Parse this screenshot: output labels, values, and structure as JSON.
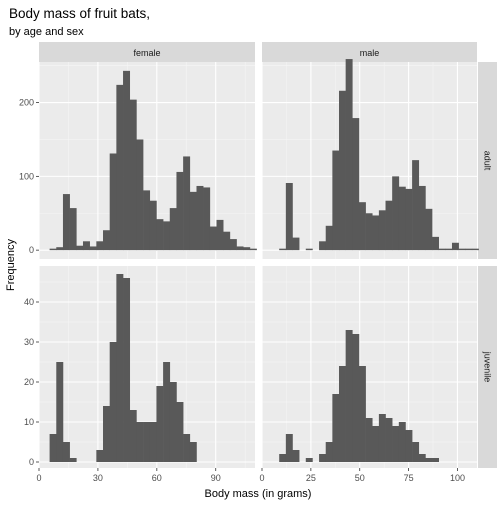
{
  "chart_data": {
    "type": "bar",
    "title": "Body mass of fruit bats,",
    "subtitle": "by age and sex",
    "xlabel": "Body mass (in grams)",
    "ylabel": "Frequency",
    "grid": true,
    "bin_width": 3.4,
    "facet_columns": [
      "female",
      "male"
    ],
    "facet_rows": [
      "adult",
      "juvenile"
    ],
    "panels": [
      {
        "column": "female",
        "row": "adult",
        "xlim": [
          0,
          110
        ],
        "ylim": [
          -12,
          255
        ],
        "xticks": [
          0,
          30,
          60,
          90
        ],
        "yticks": [
          0,
          100,
          200
        ],
        "bins_start": 5.4,
        "counts": [
          2,
          4,
          76,
          57,
          6,
          12,
          5,
          12,
          27,
          131,
          224,
          243,
          204,
          150,
          81,
          67,
          42,
          39,
          57,
          106,
          127,
          79,
          87,
          85,
          32,
          41,
          25,
          15,
          5,
          4,
          2
        ]
      },
      {
        "column": "male",
        "row": "adult",
        "xlim": [
          0,
          110
        ],
        "ylim": [
          -12,
          255
        ],
        "xticks": [
          0,
          25,
          50,
          75,
          100
        ],
        "yticks": [
          0,
          100,
          200
        ],
        "bins_start": 5.4,
        "counts": [
          0,
          2,
          91,
          17,
          0,
          2,
          0,
          12,
          33,
          135,
          216,
          259,
          179,
          65,
          50,
          47,
          54,
          67,
          100,
          86,
          83,
          122,
          87,
          56,
          18,
          2,
          2,
          10,
          2,
          2,
          2,
          0
        ]
      },
      {
        "column": "female",
        "row": "juvenile",
        "xlim": [
          0,
          110
        ],
        "ylim": [
          -1.5,
          49
        ],
        "xticks": [
          0,
          30,
          60,
          90
        ],
        "yticks": [
          0,
          10,
          20,
          30,
          40
        ],
        "bins_start": 5.4,
        "counts": [
          7,
          25,
          5,
          1,
          0,
          0,
          0,
          3,
          14,
          30,
          47,
          46,
          13,
          10,
          10,
          10,
          19,
          25,
          20,
          15,
          7,
          5,
          0,
          0,
          0,
          0,
          0,
          0,
          0,
          0
        ]
      },
      {
        "column": "male",
        "row": "juvenile",
        "xlim": [
          0,
          110
        ],
        "ylim": [
          -1.5,
          49
        ],
        "xticks": [
          0,
          25,
          50,
          75,
          100
        ],
        "yticks": [
          0,
          10,
          20,
          30,
          40
        ],
        "bins_start": 5.4,
        "counts": [
          0,
          2,
          7,
          3,
          0,
          1,
          0,
          2,
          5,
          17,
          24,
          33,
          32,
          24,
          11,
          9,
          12,
          11,
          9,
          10,
          8,
          5,
          2,
          1,
          1,
          0,
          0,
          0,
          0,
          0
        ]
      }
    ]
  }
}
